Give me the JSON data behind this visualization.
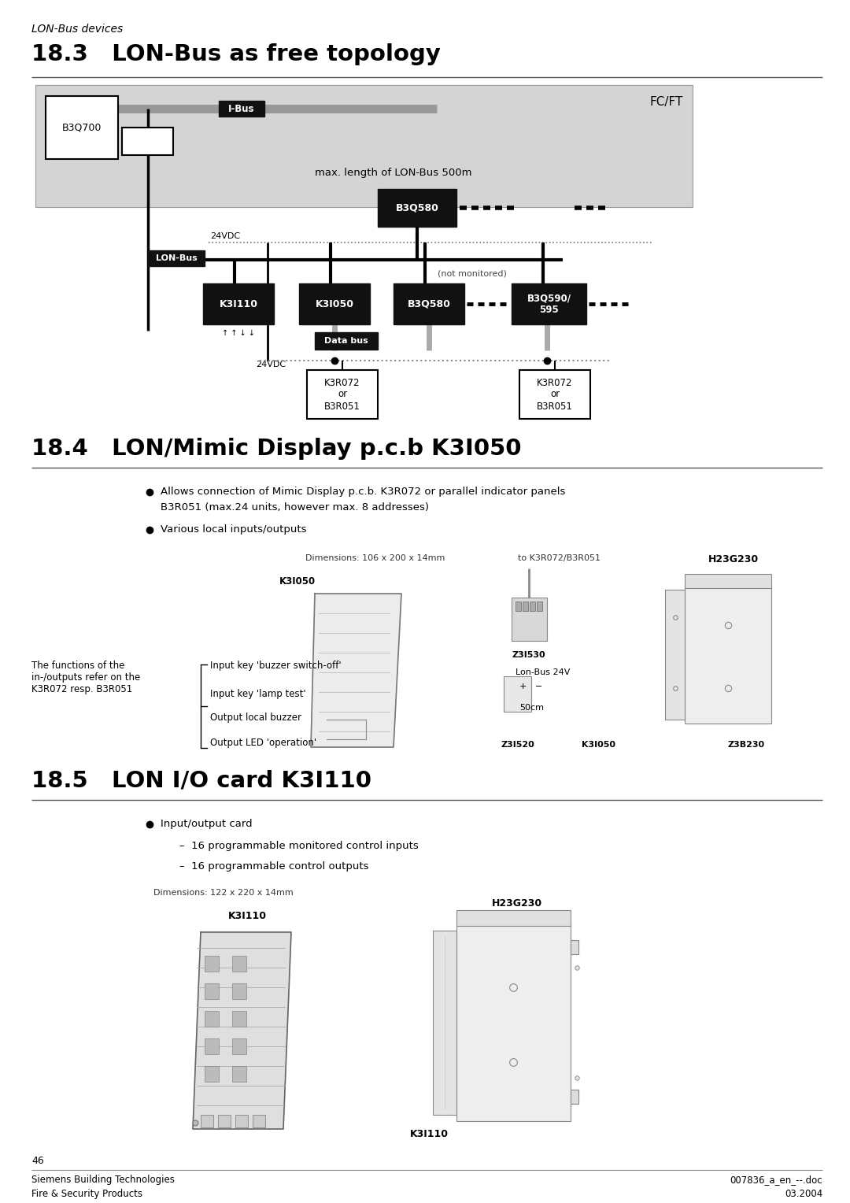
{
  "page_title_italic": "LON-Bus devices",
  "section1_title": "18.3   LON-Bus as free topology",
  "section2_title": "18.4   LON/Mimic Display p.c.b K3I050",
  "section3_title": "18.5   LON I/O card K3I110",
  "footer_left1": "Siemens Building Technologies",
  "footer_left2": "Fire & Security Products",
  "footer_right1": "007836_a_en_--.doc",
  "footer_right2": "03.2004",
  "footer_page": "46",
  "bg": "#ffffff",
  "gray_bg": "#d4d4d4",
  "black": "#111111",
  "mid_gray": "#888888",
  "light_gray": "#e8e8e8",
  "dim_gray": "#aaaaaa"
}
